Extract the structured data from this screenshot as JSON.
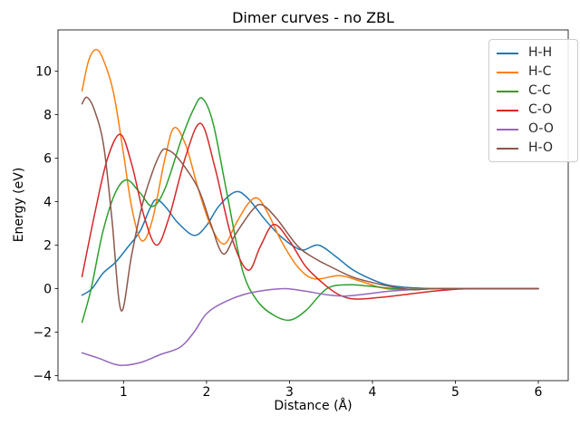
{
  "figure_title": "Dimer curves - no ZBL",
  "chart_data": {
    "type": "line",
    "title": "Dimer curves - no ZBL",
    "xlabel": "Distance (Å)",
    "ylabel": "Energy (eV)",
    "xlim": [
      0.21,
      6.36
    ],
    "ylim": [
      -4.23,
      11.9
    ],
    "xticks": [
      1,
      2,
      3,
      4,
      5,
      6
    ],
    "yticks": [
      -4,
      -2,
      0,
      2,
      4,
      6,
      8,
      10
    ],
    "grid": false,
    "legend_position": "upper right",
    "line_width": 1.5,
    "series": [
      {
        "name": "H-H",
        "color": "#1f77b4",
        "points": [
          [
            0.5,
            -0.3
          ],
          [
            0.62,
            0
          ],
          [
            0.75,
            0.7
          ],
          [
            0.9,
            1.2
          ],
          [
            1.05,
            1.9
          ],
          [
            1.2,
            2.65
          ],
          [
            1.32,
            3.7
          ],
          [
            1.4,
            4.1
          ],
          [
            1.52,
            3.7
          ],
          [
            1.65,
            3.05
          ],
          [
            1.85,
            2.45
          ],
          [
            2.0,
            2.9
          ],
          [
            2.15,
            3.8
          ],
          [
            2.35,
            4.45
          ],
          [
            2.5,
            4.15
          ],
          [
            2.7,
            3.2
          ],
          [
            2.88,
            2.45
          ],
          [
            3.05,
            1.95
          ],
          [
            3.17,
            1.78
          ],
          [
            3.35,
            2.0
          ],
          [
            3.55,
            1.5
          ],
          [
            3.75,
            0.9
          ],
          [
            3.92,
            0.55
          ],
          [
            4.15,
            0.2
          ],
          [
            4.35,
            0.08
          ],
          [
            4.6,
            0.02
          ],
          [
            5.0,
            0
          ],
          [
            5.5,
            0
          ],
          [
            6.0,
            0
          ]
        ]
      },
      {
        "name": "H-C",
        "color": "#ff7f0e",
        "points": [
          [
            0.5,
            9.1
          ],
          [
            0.58,
            10.5
          ],
          [
            0.67,
            11.0
          ],
          [
            0.76,
            10.5
          ],
          [
            0.88,
            9.0
          ],
          [
            1.0,
            6.2
          ],
          [
            1.1,
            3.7
          ],
          [
            1.22,
            2.2
          ],
          [
            1.35,
            3.2
          ],
          [
            1.5,
            6.0
          ],
          [
            1.61,
            7.4
          ],
          [
            1.75,
            6.6
          ],
          [
            1.9,
            4.6
          ],
          [
            2.05,
            2.9
          ],
          [
            2.21,
            2.05
          ],
          [
            2.35,
            2.95
          ],
          [
            2.5,
            3.9
          ],
          [
            2.62,
            4.15
          ],
          [
            2.75,
            3.4
          ],
          [
            2.9,
            2.2
          ],
          [
            3.1,
            1.0
          ],
          [
            3.3,
            0.45
          ],
          [
            3.6,
            0.6
          ],
          [
            3.85,
            0.35
          ],
          [
            4.1,
            0.05
          ],
          [
            4.3,
            -0.05
          ],
          [
            4.6,
            0
          ],
          [
            5.0,
            0
          ],
          [
            5.5,
            0
          ],
          [
            6.0,
            0
          ]
        ]
      },
      {
        "name": "C-C",
        "color": "#2ca02c",
        "points": [
          [
            0.5,
            -1.55
          ],
          [
            0.61,
            0
          ],
          [
            0.75,
            2.6
          ],
          [
            0.9,
            4.4
          ],
          [
            1.04,
            5.0
          ],
          [
            1.2,
            4.4
          ],
          [
            1.35,
            3.78
          ],
          [
            1.5,
            4.6
          ],
          [
            1.7,
            6.9
          ],
          [
            1.85,
            8.3
          ],
          [
            1.95,
            8.75
          ],
          [
            2.08,
            7.6
          ],
          [
            2.25,
            4.3
          ],
          [
            2.43,
            0.9
          ],
          [
            2.6,
            -0.5
          ],
          [
            2.8,
            -1.2
          ],
          [
            3.0,
            -1.45
          ],
          [
            3.2,
            -1.0
          ],
          [
            3.45,
            0
          ],
          [
            3.7,
            0.18
          ],
          [
            3.95,
            0.12
          ],
          [
            4.2,
            0.02
          ],
          [
            4.45,
            -0.03
          ],
          [
            4.7,
            0
          ],
          [
            5.2,
            0
          ],
          [
            6.0,
            0
          ]
        ]
      },
      {
        "name": "C-O",
        "color": "#d62728",
        "points": [
          [
            0.5,
            0.55
          ],
          [
            0.65,
            3.4
          ],
          [
            0.8,
            5.9
          ],
          [
            0.96,
            7.1
          ],
          [
            1.1,
            5.7
          ],
          [
            1.25,
            3.3
          ],
          [
            1.4,
            2.0
          ],
          [
            1.55,
            3.3
          ],
          [
            1.75,
            6.1
          ],
          [
            1.93,
            7.6
          ],
          [
            2.1,
            5.6
          ],
          [
            2.3,
            2.4
          ],
          [
            2.5,
            0.85
          ],
          [
            2.65,
            1.95
          ],
          [
            2.81,
            2.95
          ],
          [
            3.0,
            2.2
          ],
          [
            3.2,
            1.0
          ],
          [
            3.45,
            0.1
          ],
          [
            3.62,
            -0.32
          ],
          [
            3.8,
            -0.48
          ],
          [
            4.1,
            -0.4
          ],
          [
            4.4,
            -0.27
          ],
          [
            4.7,
            -0.13
          ],
          [
            5.0,
            -0.03
          ],
          [
            5.3,
            0
          ],
          [
            6.0,
            0
          ]
        ]
      },
      {
        "name": "O-O",
        "color": "#9467bd",
        "points": [
          [
            0.5,
            -2.95
          ],
          [
            0.7,
            -3.2
          ],
          [
            0.95,
            -3.52
          ],
          [
            1.2,
            -3.4
          ],
          [
            1.45,
            -3.02
          ],
          [
            1.68,
            -2.7
          ],
          [
            1.85,
            -2.0
          ],
          [
            2.0,
            -1.15
          ],
          [
            2.2,
            -0.65
          ],
          [
            2.45,
            -0.27
          ],
          [
            2.7,
            -0.08
          ],
          [
            2.95,
            0
          ],
          [
            3.2,
            -0.12
          ],
          [
            3.45,
            -0.28
          ],
          [
            3.67,
            -0.34
          ],
          [
            3.9,
            -0.26
          ],
          [
            4.2,
            -0.12
          ],
          [
            4.5,
            -0.04
          ],
          [
            4.8,
            0
          ],
          [
            5.3,
            0
          ],
          [
            6.0,
            0
          ]
        ]
      },
      {
        "name": "H-O",
        "color": "#8c564b",
        "points": [
          [
            0.5,
            8.5
          ],
          [
            0.56,
            8.8
          ],
          [
            0.65,
            8.2
          ],
          [
            0.76,
            6.6
          ],
          [
            0.86,
            3.2
          ],
          [
            0.97,
            -1.0
          ],
          [
            1.1,
            1.6
          ],
          [
            1.25,
            4.2
          ],
          [
            1.44,
            6.2
          ],
          [
            1.55,
            6.35
          ],
          [
            1.7,
            5.8
          ],
          [
            1.9,
            4.6
          ],
          [
            2.05,
            3.0
          ],
          [
            2.2,
            1.6
          ],
          [
            2.35,
            2.5
          ],
          [
            2.55,
            3.6
          ],
          [
            2.67,
            3.85
          ],
          [
            2.85,
            3.2
          ],
          [
            3.1,
            1.95
          ],
          [
            3.3,
            1.4
          ],
          [
            3.5,
            1.0
          ],
          [
            3.75,
            0.55
          ],
          [
            4.0,
            0.28
          ],
          [
            4.25,
            0.08
          ],
          [
            4.5,
            -0.05
          ],
          [
            4.75,
            0
          ],
          [
            5.3,
            0
          ],
          [
            6.0,
            0
          ]
        ]
      }
    ]
  }
}
